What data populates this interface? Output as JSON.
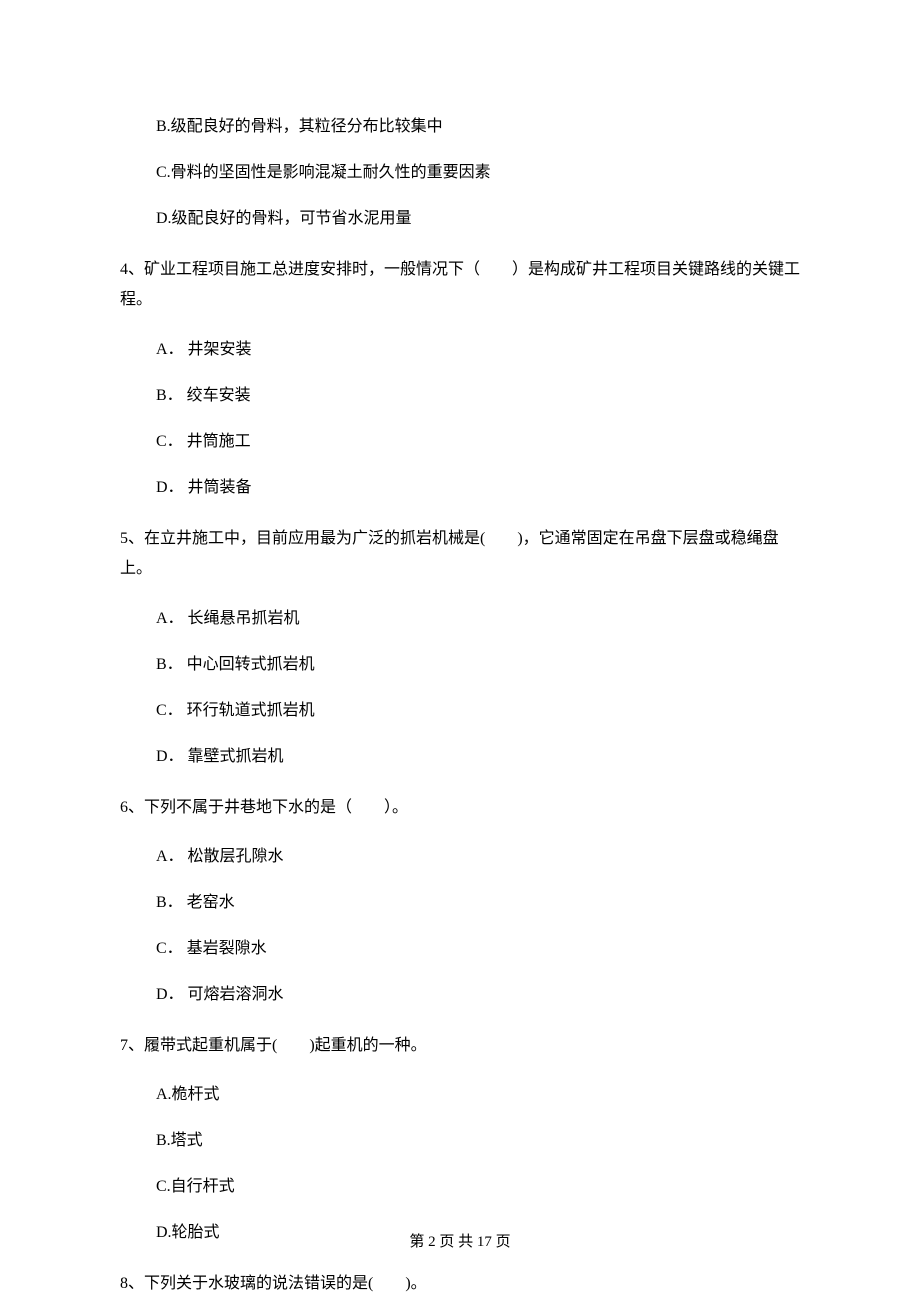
{
  "q3": {
    "optB": "B.级配良好的骨料，其粒径分布比较集中",
    "optC": "C.骨料的坚固性是影响混凝土耐久性的重要因素",
    "optD": "D.级配良好的骨料，可节省水泥用量"
  },
  "q4": {
    "text": "4、矿业工程项目施工总进度安排时，一般情况下（　　）是构成矿井工程项目关键路线的关键工程。",
    "optA": "A． 井架安装",
    "optB": "B． 绞车安装",
    "optC": "C． 井筒施工",
    "optD": "D． 井筒装备"
  },
  "q5": {
    "text": "5、在立井施工中，目前应用最为广泛的抓岩机械是(　　)，它通常固定在吊盘下层盘或稳绳盘上。",
    "optA": "A． 长绳悬吊抓岩机",
    "optB": "B． 中心回转式抓岩机",
    "optC": "C． 环行轨道式抓岩机",
    "optD": "D． 靠壁式抓岩机"
  },
  "q6": {
    "text": "6、下列不属于井巷地下水的是（　　）。",
    "optA": "A． 松散层孔隙水",
    "optB": "B． 老窑水",
    "optC": "C． 基岩裂隙水",
    "optD": "D． 可熔岩溶洞水"
  },
  "q7": {
    "text": "7、履带式起重机属于(　　)起重机的一种。",
    "optA": "A.桅杆式",
    "optB": "B.塔式",
    "optC": "C.自行杆式",
    "optD": "D.轮胎式"
  },
  "q8": {
    "text": "8、下列关于水玻璃的说法错误的是(　　)。"
  },
  "footer": "第 2 页 共 17 页"
}
